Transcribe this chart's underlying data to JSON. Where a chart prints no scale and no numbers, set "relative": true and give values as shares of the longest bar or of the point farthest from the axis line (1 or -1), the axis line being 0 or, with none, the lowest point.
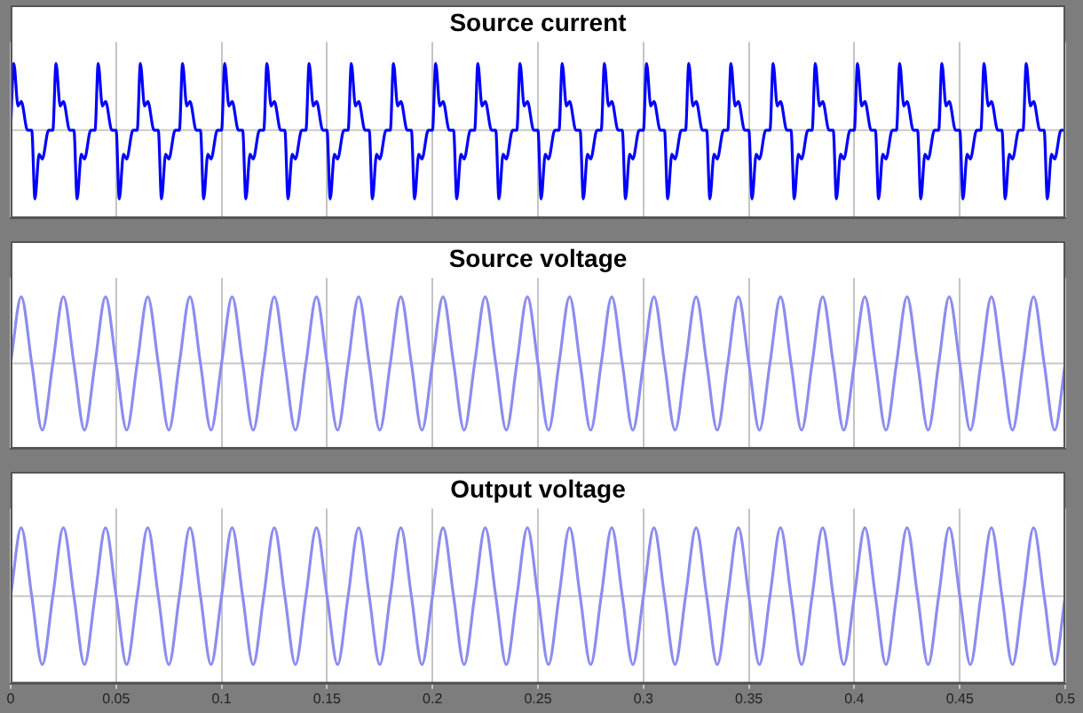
{
  "chart_data": [
    {
      "type": "line",
      "title": "Source current",
      "relative": true,
      "grid": "x",
      "tick_labels": false,
      "marker": "none",
      "xlim": [
        0,
        0.5
      ],
      "xticks": [
        0,
        0.05,
        0.1,
        0.15,
        0.2,
        0.25,
        0.3,
        0.35,
        0.4,
        0.45,
        0.5
      ],
      "ref_lines": [
        {
          "axis": "y",
          "value": 0,
          "color": "#c8c8c8"
        }
      ],
      "color": "#0000ff",
      "x": [
        0,
        0.0015,
        0.0035,
        0.005,
        0.008,
        0.01,
        0.0115,
        0.0135,
        0.015,
        0.018,
        0.02,
        0.0215,
        0.0235,
        0.025,
        0.028,
        0.03,
        0.0315,
        0.0335,
        0.035,
        0.038,
        0.04,
        0.0415,
        0.0435,
        0.045,
        0.048,
        0.05,
        0.0515,
        0.0535,
        0.055,
        0.058,
        0.06,
        0.0615,
        0.0635,
        0.065,
        0.068,
        0.07,
        0.0715,
        0.0735,
        0.075,
        0.078,
        0.08,
        0.0815,
        0.0835,
        0.085,
        0.088,
        0.09,
        0.0915,
        0.0935,
        0.095,
        0.098,
        0.1,
        0.1015,
        0.1035,
        0.105,
        0.108,
        0.11,
        0.1115,
        0.1135,
        0.115,
        0.118,
        0.12,
        0.1215,
        0.1235,
        0.125,
        0.128,
        0.13,
        0.1315,
        0.1335,
        0.135,
        0.138,
        0.14,
        0.1415,
        0.1435,
        0.145,
        0.148,
        0.15,
        0.1515,
        0.1535,
        0.155,
        0.158,
        0.16,
        0.1615,
        0.1635,
        0.165,
        0.168,
        0.17,
        0.1715,
        0.1735,
        0.175,
        0.178,
        0.18,
        0.1815,
        0.1835,
        0.185,
        0.188,
        0.19,
        0.1915,
        0.1935,
        0.195,
        0.198,
        0.2,
        0.2015,
        0.2035,
        0.205,
        0.208,
        0.21,
        0.2115,
        0.2135,
        0.215,
        0.218,
        0.22,
        0.2215,
        0.2235,
        0.225,
        0.228,
        0.23,
        0.2315,
        0.2335,
        0.235,
        0.238,
        0.24,
        0.2415,
        0.2435,
        0.245,
        0.248,
        0.25,
        0.2515,
        0.2535,
        0.255,
        0.258,
        0.26,
        0.2615,
        0.2635,
        0.265,
        0.268,
        0.27,
        0.2715,
        0.2735,
        0.275,
        0.278,
        0.28,
        0.2815,
        0.2835,
        0.285,
        0.288,
        0.29,
        0.2915,
        0.2935,
        0.295,
        0.298,
        0.3,
        0.3015,
        0.3035,
        0.305,
        0.308,
        0.31,
        0.3115,
        0.3135,
        0.315,
        0.318,
        0.32,
        0.3215,
        0.3235,
        0.325,
        0.328,
        0.33,
        0.3315,
        0.3335,
        0.335,
        0.338,
        0.34,
        0.3415,
        0.3435,
        0.345,
        0.348,
        0.35,
        0.3515,
        0.3535,
        0.355,
        0.358,
        0.36,
        0.3615,
        0.3635,
        0.365,
        0.368,
        0.37,
        0.3715,
        0.3735,
        0.375,
        0.378,
        0.38,
        0.3815,
        0.3835,
        0.385,
        0.388,
        0.39,
        0.3915,
        0.3935,
        0.395,
        0.398,
        0.4,
        0.4015,
        0.4035,
        0.405,
        0.408,
        0.41,
        0.4115,
        0.4135,
        0.415,
        0.418,
        0.42,
        0.4215,
        0.4235,
        0.425,
        0.428,
        0.43,
        0.4315,
        0.4335,
        0.435,
        0.438,
        0.44,
        0.4415,
        0.4435,
        0.445,
        0.448,
        0.45,
        0.4515,
        0.4535,
        0.455,
        0.458,
        0.46,
        0.4615,
        0.4635,
        0.465,
        0.468,
        0.47,
        0.4715,
        0.4735,
        0.475,
        0.478,
        0.48,
        0.4815,
        0.4835,
        0.485,
        0.488,
        0.49,
        0.4915,
        0.4935,
        0.495,
        0.498,
        0.5
      ],
      "values": [
        0,
        0.97,
        0.35,
        0.42,
        0,
        0,
        -1,
        -0.35,
        -0.42,
        0,
        0,
        0.97,
        0.35,
        0.42,
        0,
        0,
        -1,
        -0.35,
        -0.42,
        0,
        0,
        0.97,
        0.35,
        0.42,
        0,
        0,
        -1,
        -0.35,
        -0.42,
        0,
        0,
        0.97,
        0.35,
        0.42,
        0,
        0,
        -1,
        -0.35,
        -0.42,
        0,
        0,
        0.97,
        0.35,
        0.42,
        0,
        0,
        -1,
        -0.35,
        -0.42,
        0,
        0,
        0.97,
        0.35,
        0.42,
        0,
        0,
        -1,
        -0.35,
        -0.42,
        0,
        0,
        0.97,
        0.35,
        0.42,
        0,
        0,
        -1,
        -0.35,
        -0.42,
        0,
        0,
        0.97,
        0.35,
        0.42,
        0,
        0,
        -1,
        -0.35,
        -0.42,
        0,
        0,
        0.97,
        0.35,
        0.42,
        0,
        0,
        -1,
        -0.35,
        -0.42,
        0,
        0,
        0.97,
        0.35,
        0.42,
        0,
        0,
        -1,
        -0.35,
        -0.42,
        0,
        0,
        0.97,
        0.35,
        0.42,
        0,
        0,
        -1,
        -0.35,
        -0.42,
        0,
        0,
        0.97,
        0.35,
        0.42,
        0,
        0,
        -1,
        -0.35,
        -0.42,
        0,
        0,
        0.97,
        0.35,
        0.42,
        0,
        0,
        -1,
        -0.35,
        -0.42,
        0,
        0,
        0.97,
        0.35,
        0.42,
        0,
        0,
        -1,
        -0.35,
        -0.42,
        0,
        0,
        0.97,
        0.35,
        0.42,
        0,
        0,
        -1,
        -0.35,
        -0.42,
        0,
        0,
        0.97,
        0.35,
        0.42,
        0,
        0,
        -1,
        -0.35,
        -0.42,
        0,
        0,
        0.97,
        0.35,
        0.42,
        0,
        0,
        -1,
        -0.35,
        -0.42,
        0,
        0,
        0.97,
        0.35,
        0.42,
        0,
        0,
        -1,
        -0.35,
        -0.42,
        0,
        0,
        0.97,
        0.35,
        0.42,
        0,
        0,
        -1,
        -0.35,
        -0.42,
        0,
        0,
        0.97,
        0.35,
        0.42,
        0,
        0,
        -1,
        -0.35,
        -0.42,
        0,
        0,
        0.97,
        0.35,
        0.42,
        0,
        0,
        -1,
        -0.35,
        -0.42,
        0,
        0,
        0.97,
        0.35,
        0.42,
        0,
        0,
        -1,
        -0.35,
        -0.42,
        0,
        0,
        0.97,
        0.35,
        0.42,
        0,
        0,
        -1,
        -0.35,
        -0.42,
        0,
        0,
        0.97,
        0.35,
        0.42,
        0,
        0,
        -1,
        -0.35,
        -0.42,
        0,
        0,
        0.97,
        0.35,
        0.42,
        0,
        0,
        -1,
        -0.35,
        -0.42,
        0,
        0
      ]
    },
    {
      "type": "line",
      "title": "Source voltage",
      "relative": true,
      "grid": "x",
      "tick_labels": false,
      "marker": "none",
      "xlim": [
        0,
        0.5
      ],
      "xticks": [
        0,
        0.05,
        0.1,
        0.15,
        0.2,
        0.25,
        0.3,
        0.35,
        0.4,
        0.45,
        0.5
      ],
      "ref_lines": [
        {
          "axis": "y",
          "value": 0,
          "color": "#c8c8c8"
        }
      ],
      "color": "#8c8cf0",
      "x": [
        0,
        0.005,
        0.01,
        0.015,
        0.02,
        0.025,
        0.03,
        0.035,
        0.04,
        0.045,
        0.05,
        0.055,
        0.06,
        0.065,
        0.07,
        0.075,
        0.08,
        0.085,
        0.09,
        0.095,
        0.1,
        0.105,
        0.11,
        0.115,
        0.12,
        0.125,
        0.13,
        0.135,
        0.14,
        0.145,
        0.15,
        0.155,
        0.16,
        0.165,
        0.17,
        0.175,
        0.18,
        0.185,
        0.19,
        0.195,
        0.2,
        0.205,
        0.21,
        0.215,
        0.22,
        0.225,
        0.23,
        0.235,
        0.24,
        0.245,
        0.25,
        0.255,
        0.26,
        0.265,
        0.27,
        0.275,
        0.28,
        0.285,
        0.29,
        0.295,
        0.3,
        0.305,
        0.31,
        0.315,
        0.32,
        0.325,
        0.33,
        0.335,
        0.34,
        0.345,
        0.35,
        0.355,
        0.36,
        0.365,
        0.37,
        0.375,
        0.38,
        0.385,
        0.39,
        0.395,
        0.4,
        0.405,
        0.41,
        0.415,
        0.42,
        0.425,
        0.43,
        0.435,
        0.44,
        0.445,
        0.45,
        0.455,
        0.46,
        0.465,
        0.47,
        0.475,
        0.48,
        0.485,
        0.49,
        0.495,
        0.5
      ],
      "values": [
        0,
        1,
        0,
        -1,
        0,
        1,
        0,
        -1,
        0,
        1,
        0,
        -1,
        0,
        1,
        0,
        -1,
        0,
        1,
        0,
        -1,
        0,
        1,
        0,
        -1,
        0,
        1,
        0,
        -1,
        0,
        1,
        0,
        -1,
        0,
        1,
        0,
        -1,
        0,
        1,
        0,
        -1,
        0,
        1,
        0,
        -1,
        0,
        1,
        0,
        -1,
        0,
        1,
        0,
        -1,
        0,
        1,
        0,
        -1,
        0,
        1,
        0,
        -1,
        0,
        1,
        0,
        -1,
        0,
        1,
        0,
        -1,
        0,
        1,
        0,
        -1,
        0,
        1,
        0,
        -1,
        0,
        1,
        0,
        -1,
        0,
        1,
        0,
        -1,
        0,
        1,
        0,
        -1,
        0,
        1,
        0,
        -1,
        0,
        1,
        0,
        -1,
        0,
        1,
        0,
        -1,
        0
      ]
    },
    {
      "type": "line",
      "title": "Output voltage",
      "relative": true,
      "grid": "x",
      "tick_labels": "x",
      "marker": "none",
      "xlim": [
        0,
        0.5
      ],
      "xticks": [
        0,
        0.05,
        0.1,
        0.15,
        0.2,
        0.25,
        0.3,
        0.35,
        0.4,
        0.45,
        0.5
      ],
      "ref_lines": [
        {
          "axis": "y",
          "value": 0,
          "color": "#c8c8c8"
        }
      ],
      "color": "#8c8cf0",
      "x": [
        0,
        0.005,
        0.01,
        0.015,
        0.02,
        0.025,
        0.03,
        0.035,
        0.04,
        0.045,
        0.05,
        0.055,
        0.06,
        0.065,
        0.07,
        0.075,
        0.08,
        0.085,
        0.09,
        0.095,
        0.1,
        0.105,
        0.11,
        0.115,
        0.12,
        0.125,
        0.13,
        0.135,
        0.14,
        0.145,
        0.15,
        0.155,
        0.16,
        0.165,
        0.17,
        0.175,
        0.18,
        0.185,
        0.19,
        0.195,
        0.2,
        0.205,
        0.21,
        0.215,
        0.22,
        0.225,
        0.23,
        0.235,
        0.24,
        0.245,
        0.25,
        0.255,
        0.26,
        0.265,
        0.27,
        0.275,
        0.28,
        0.285,
        0.29,
        0.295,
        0.3,
        0.305,
        0.31,
        0.315,
        0.32,
        0.325,
        0.33,
        0.335,
        0.34,
        0.345,
        0.35,
        0.355,
        0.36,
        0.365,
        0.37,
        0.375,
        0.38,
        0.385,
        0.39,
        0.395,
        0.4,
        0.405,
        0.41,
        0.415,
        0.42,
        0.425,
        0.43,
        0.435,
        0.44,
        0.445,
        0.45,
        0.455,
        0.46,
        0.465,
        0.47,
        0.475,
        0.48,
        0.485,
        0.49,
        0.495,
        0.5
      ],
      "values": [
        0,
        1,
        0,
        -1,
        0,
        1,
        0,
        -1,
        0,
        1,
        0,
        -1,
        0,
        1,
        0,
        -1,
        0,
        1,
        0,
        -1,
        0,
        1,
        0,
        -1,
        0,
        1,
        0,
        -1,
        0,
        1,
        0,
        -1,
        0,
        1,
        0,
        -1,
        0,
        1,
        0,
        -1,
        0,
        1,
        0,
        -1,
        0,
        1,
        0,
        -1,
        0,
        1,
        0,
        -1,
        0,
        1,
        0,
        -1,
        0,
        1,
        0,
        -1,
        0,
        1,
        0,
        -1,
        0,
        1,
        0,
        -1,
        0,
        1,
        0,
        -1,
        0,
        1,
        0,
        -1,
        0,
        1,
        0,
        -1,
        0,
        1,
        0,
        -1,
        0,
        1,
        0,
        -1,
        0,
        1,
        0,
        -1,
        0,
        1,
        0,
        -1,
        0,
        1,
        0,
        -1,
        0
      ]
    }
  ]
}
